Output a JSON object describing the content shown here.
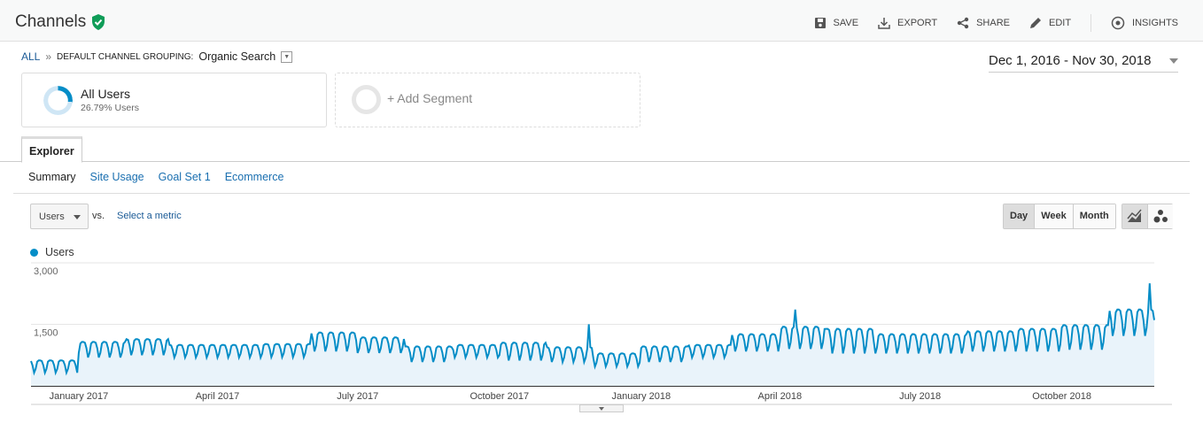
{
  "header": {
    "title": "Channels",
    "verified_icon": "shield-check-icon",
    "actions": [
      {
        "label": "SAVE",
        "icon": "save-icon"
      },
      {
        "label": "EXPORT",
        "icon": "download-icon"
      },
      {
        "label": "SHARE",
        "icon": "share-icon"
      },
      {
        "label": "EDIT",
        "icon": "pencil-icon"
      },
      {
        "label": "INSIGHTS",
        "icon": "insights-icon"
      }
    ]
  },
  "breadcrumb": {
    "root": "ALL",
    "sep": "»",
    "group": "DEFAULT CHANNEL GROUPING:",
    "value": "Organic Search"
  },
  "date_range": "Dec 1, 2016 - Nov 30, 2018",
  "segments": [
    {
      "name": "All Users",
      "sub": "26.79% Users",
      "share": 0.2679
    },
    {
      "name": "+ Add Segment"
    }
  ],
  "tabs": [
    "Explorer"
  ],
  "subnav": [
    "Summary",
    "Site Usage",
    "Goal Set 1",
    "Ecommerce"
  ],
  "metric": {
    "selected": "Users",
    "vs": "VS.",
    "select_metric": "Select a metric"
  },
  "granularity": [
    "Day",
    "Week",
    "Month"
  ],
  "colors": {
    "line": "#058dc7",
    "fill": "#e9f3fa",
    "accent": "#1a6fb0"
  },
  "chart_data": {
    "type": "line",
    "title": "",
    "series_name": "Users",
    "ylim": [
      0,
      3000
    ],
    "yticks": [
      "1,500",
      "3,000"
    ],
    "ytick_values": [
      1500,
      3000
    ],
    "x_start": "2016-12-01",
    "x_end": "2018-11-30",
    "xticks": [
      {
        "label": "January 2017",
        "date": "2017-01-01"
      },
      {
        "label": "April 2017",
        "date": "2017-04-01"
      },
      {
        "label": "July 2017",
        "date": "2017-07-01"
      },
      {
        "label": "October 2017",
        "date": "2017-10-01"
      },
      {
        "label": "January 2018",
        "date": "2018-01-01"
      },
      {
        "label": "April 2018",
        "date": "2018-04-01"
      },
      {
        "label": "July 2018",
        "date": "2018-07-01"
      },
      {
        "label": "October 2018",
        "date": "2018-10-01"
      }
    ],
    "monthly_weekday_peak": [
      620,
      1070,
      1140,
      1000,
      1000,
      1020,
      1300,
      1180,
      960,
      1000,
      1050,
      940,
      790,
      960,
      1000,
      1260,
      1440,
      1390,
      1260,
      1260,
      1330,
      1390,
      1480,
      1860
    ],
    "monthly_weekend_low": [
      320,
      690,
      750,
      690,
      690,
      700,
      840,
      800,
      580,
      690,
      620,
      580,
      470,
      580,
      690,
      840,
      900,
      790,
      790,
      790,
      840,
      840,
      880,
      1220
    ],
    "spikes": [
      {
        "date": "2017-11-28",
        "value": 1500
      },
      {
        "date": "2018-04-11",
        "value": 1860
      },
      {
        "date": "2018-11-27",
        "value": 2500
      }
    ]
  }
}
